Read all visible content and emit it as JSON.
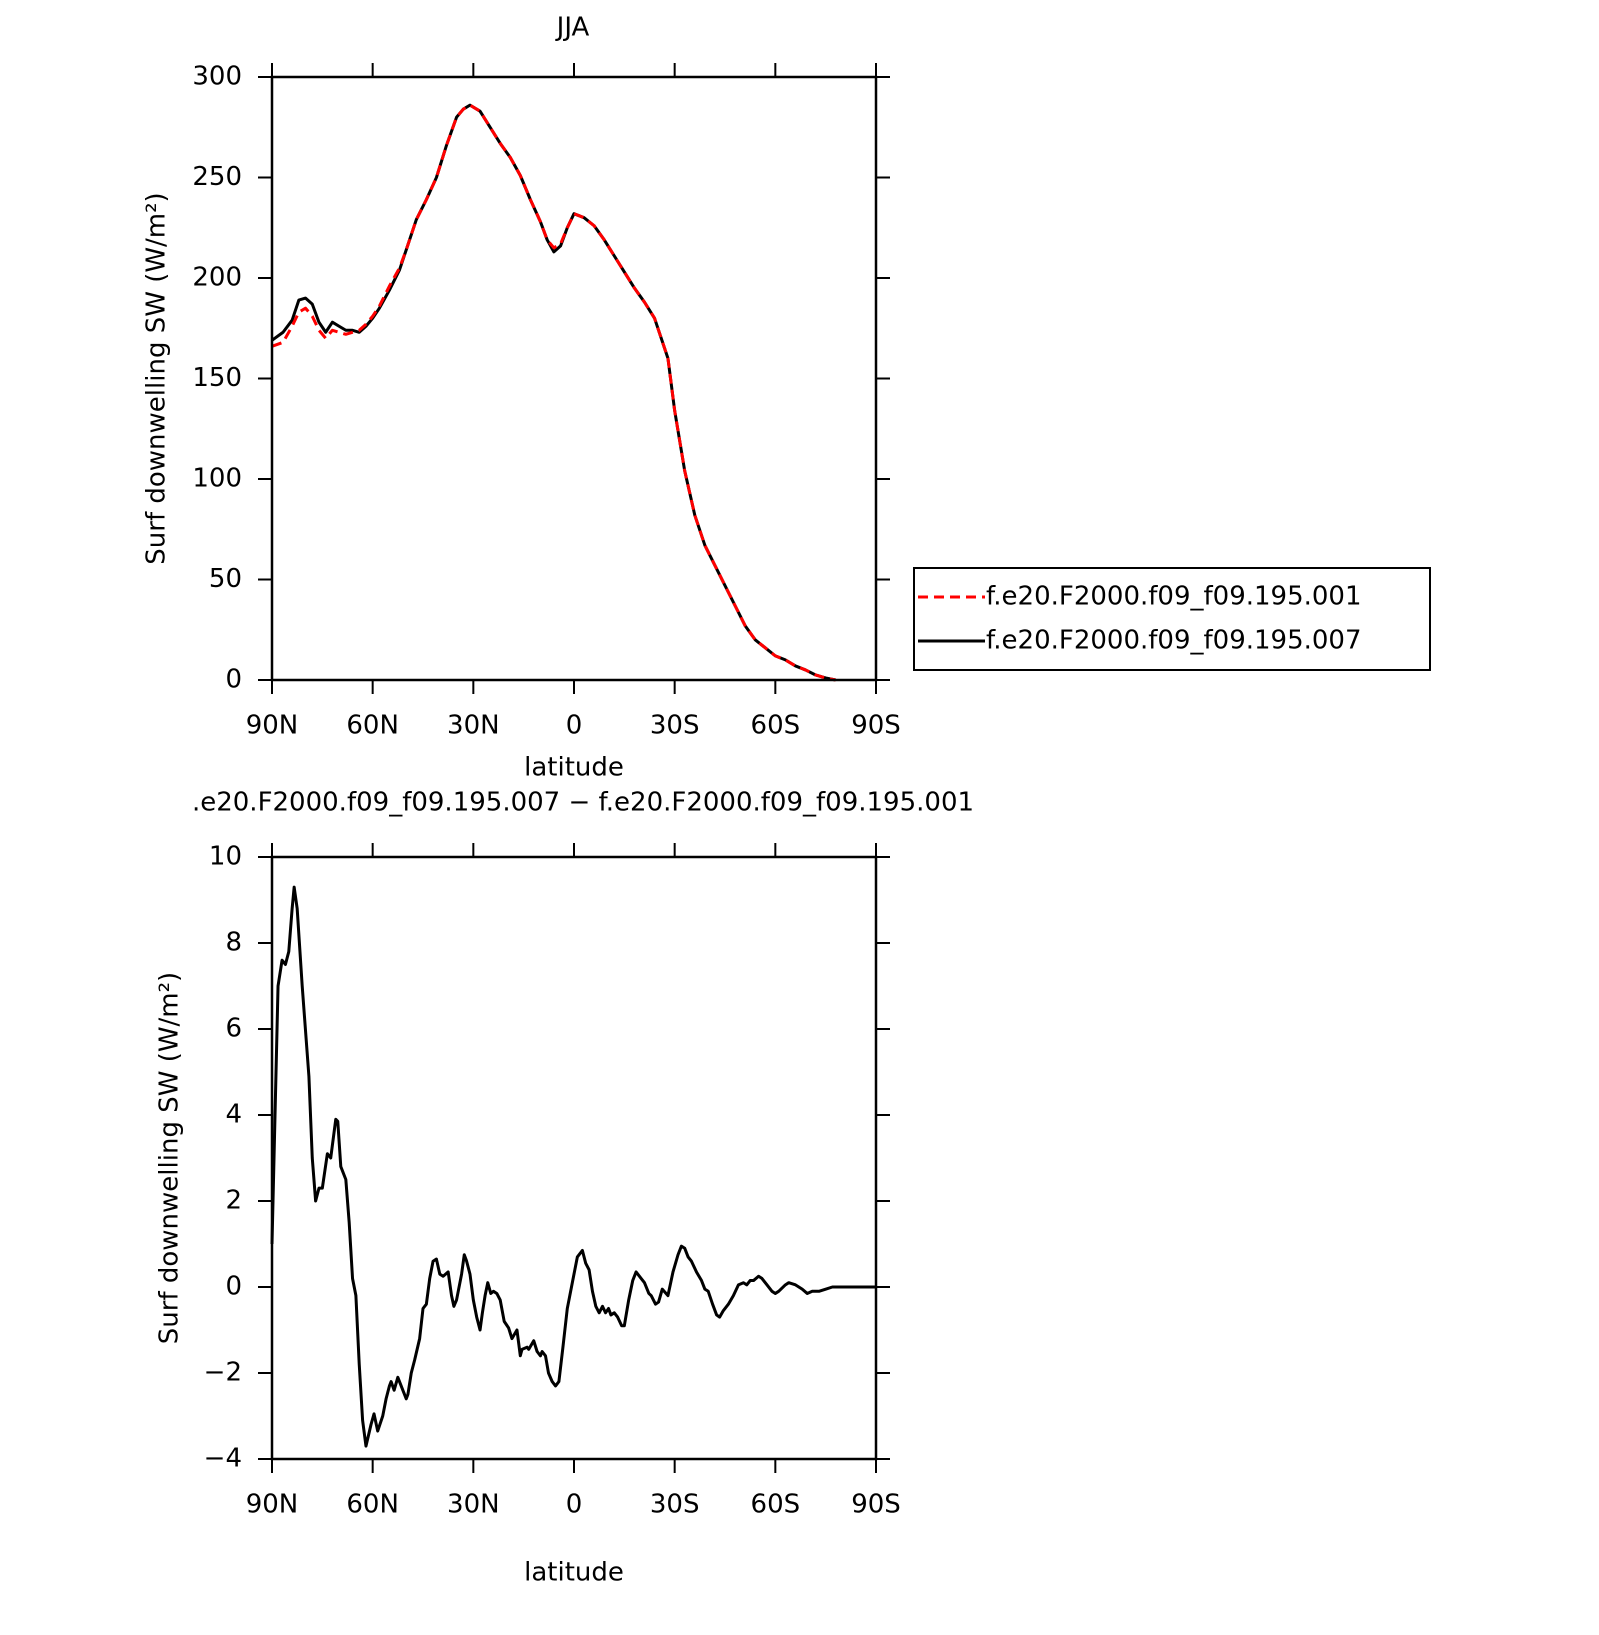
{
  "chart_data": [
    {
      "type": "line",
      "title": "JJA",
      "xlabel": "latitude",
      "ylabel": "Surf downwelling SW (W/m²)",
      "x": [
        90,
        86.7,
        84,
        82,
        80,
        78,
        76,
        74,
        72,
        70,
        68,
        66,
        64,
        62,
        60,
        58,
        55,
        52,
        50,
        47,
        44,
        41,
        38,
        35,
        33,
        31,
        28,
        25,
        22,
        19,
        16,
        13,
        10,
        8,
        6,
        4,
        2,
        0,
        -3,
        -6,
        -9,
        -12,
        -15,
        -18,
        -21,
        -24,
        -28,
        -30,
        -33,
        -36,
        -39,
        -42,
        -45,
        -48,
        -51,
        -54,
        -57,
        -60,
        -63,
        -66,
        -69,
        -72,
        -75,
        -78
      ],
      "series": [
        {
          "name": "f.e20.F2000.f09_f09.195.001",
          "color": "#ff0000",
          "linestyle": "dashed",
          "values": [
            166,
            168,
            176,
            183,
            185,
            181,
            174,
            170,
            174,
            173,
            172,
            173,
            174,
            177,
            181,
            186,
            196,
            205,
            214,
            229,
            239,
            250,
            266,
            280,
            284,
            286,
            283,
            275,
            267,
            260,
            251,
            239,
            228,
            219,
            215,
            217,
            225,
            232,
            230,
            226,
            219,
            211,
            203,
            195,
            188,
            180,
            160,
            134,
            104,
            82,
            67,
            57,
            47,
            37,
            27,
            20,
            16,
            12,
            10,
            7,
            5,
            2.5,
            1,
            0
          ]
        },
        {
          "name": "f.e20.F2000.f09_f09.195.007",
          "color": "#000000",
          "linestyle": "solid",
          "values": [
            169,
            173,
            179,
            189,
            190,
            187,
            178,
            173,
            178,
            176,
            174,
            174,
            173,
            176,
            180,
            185,
            194,
            204,
            214,
            229,
            239,
            250,
            266,
            280,
            284,
            286,
            283,
            275,
            267,
            260,
            251,
            239,
            228,
            219,
            213,
            216,
            225,
            232,
            230,
            226,
            219,
            211,
            203,
            195,
            188,
            180,
            160,
            134,
            104,
            82,
            67,
            57,
            47,
            37,
            27,
            20,
            16,
            12,
            10,
            7,
            5,
            2.5,
            1,
            0
          ]
        }
      ],
      "xlim": [
        90,
        -90
      ],
      "ylim": [
        0,
        300
      ],
      "xticks": [
        {
          "value": 90,
          "label": "90N"
        },
        {
          "value": 60,
          "label": "60N"
        },
        {
          "value": 30,
          "label": "30N"
        },
        0,
        {
          "value": -30,
          "label": "30S"
        },
        {
          "value": -60,
          "label": "60S"
        },
        {
          "value": -90,
          "label": "90S"
        }
      ],
      "yticks": [
        0,
        50,
        100,
        150,
        200,
        250,
        300
      ],
      "legend": "right"
    },
    {
      "type": "line",
      "title": ".e20.F2000.f09_f09.195.007 − f.e20.F2000.f09_f09.195.001",
      "xlabel": "latitude",
      "ylabel": "Surf downwelling SW (W/m²)",
      "x": [
        90,
        88.2,
        87,
        86,
        85,
        84,
        83.4,
        82.5,
        81,
        79,
        78,
        77,
        76,
        75,
        73.5,
        72.5,
        71,
        70.4,
        69.5,
        68,
        67,
        66,
        65,
        64,
        63,
        62,
        60.5,
        59.6,
        58.5,
        57,
        56,
        55,
        54.5,
        53.6,
        52.5,
        51.5,
        50,
        49.5,
        48.5,
        47.5,
        46,
        45,
        44,
        43,
        42,
        41,
        40,
        39,
        37.5,
        36.5,
        35.8,
        35,
        33.5,
        32.7,
        32,
        31,
        30,
        29,
        28,
        27.3,
        26.5,
        25.7,
        24.8,
        24,
        23,
        22,
        20.8,
        19.5,
        18.5,
        17,
        16,
        15.5,
        14,
        13.5,
        12,
        11,
        10,
        9.5,
        8.5,
        7.6,
        6.5,
        5.5,
        4.5,
        3.3,
        2,
        0.5,
        -1,
        -2.5,
        -3.5,
        -4.5,
        -5.5,
        -6.5,
        -7.5,
        -8.5,
        -9.4,
        -10.3,
        -11,
        -12,
        -13,
        -14.2,
        -15,
        -16.3,
        -17.5,
        -18.5,
        -20,
        -21,
        -22.3,
        -23,
        -24.3,
        -25.2,
        -26.3,
        -28,
        -29.5,
        -31,
        -32,
        -33,
        -34,
        -35,
        -36.5,
        -38,
        -39,
        -40,
        -41.3,
        -42.5,
        -43.4,
        -44.5,
        -46,
        -47.5,
        -49,
        -50.5,
        -51.5,
        -52.5,
        -53.5,
        -55,
        -56,
        -57.5,
        -59,
        -60,
        -61,
        -63,
        -64,
        -66,
        -68,
        -69.5,
        -71,
        -73,
        -75,
        -77,
        -80,
        -85,
        -90
      ],
      "series": [
        {
          "name": "difference",
          "color": "#000000",
          "values": [
            1.0,
            7.0,
            7.6,
            7.5,
            7.8,
            8.8,
            9.3,
            8.8,
            7.0,
            4.9,
            3.0,
            2.0,
            2.3,
            2.3,
            3.1,
            3.0,
            3.9,
            3.85,
            2.8,
            2.5,
            1.5,
            0.2,
            -0.2,
            -1.8,
            -3.1,
            -3.7,
            -3.2,
            -2.95,
            -3.35,
            -3.0,
            -2.6,
            -2.3,
            -2.2,
            -2.4,
            -2.1,
            -2.3,
            -2.6,
            -2.5,
            -2.0,
            -1.7,
            -1.2,
            -0.5,
            -0.4,
            0.2,
            0.6,
            0.65,
            0.3,
            0.25,
            0.35,
            -0.2,
            -0.45,
            -0.3,
            0.3,
            0.75,
            0.6,
            0.3,
            -0.3,
            -0.7,
            -1.0,
            -0.6,
            -0.2,
            0.1,
            -0.15,
            -0.1,
            -0.15,
            -0.3,
            -0.8,
            -0.95,
            -1.2,
            -1.0,
            -1.6,
            -1.45,
            -1.4,
            -1.45,
            -1.25,
            -1.5,
            -1.6,
            -1.5,
            -1.6,
            -2.0,
            -2.2,
            -2.3,
            -2.2,
            -1.4,
            -0.5,
            0.1,
            0.7,
            0.85,
            0.55,
            0.4,
            -0.1,
            -0.45,
            -0.6,
            -0.45,
            -0.6,
            -0.5,
            -0.65,
            -0.6,
            -0.7,
            -0.9,
            -0.9,
            -0.3,
            0.15,
            0.35,
            0.2,
            0.1,
            -0.15,
            -0.2,
            -0.4,
            -0.35,
            -0.05,
            -0.2,
            0.35,
            0.75,
            0.95,
            0.9,
            0.7,
            0.6,
            0.35,
            0.15,
            -0.05,
            -0.1,
            -0.4,
            -0.65,
            -0.7,
            -0.55,
            -0.4,
            -0.2,
            0.05,
            0.1,
            0.05,
            0.15,
            0.15,
            0.25,
            0.2,
            0.05,
            -0.1,
            -0.15,
            -0.1,
            0.05,
            0.1,
            0.05,
            -0.05,
            -0.15,
            -0.1,
            -0.1,
            -0.05,
            0,
            0,
            0,
            0
          ]
        }
      ],
      "xlim": [
        90,
        -90
      ],
      "ylim": [
        -4,
        10
      ],
      "xticks": [
        {
          "value": 90,
          "label": "90N"
        },
        {
          "value": 60,
          "label": "60N"
        },
        {
          "value": 30,
          "label": "30N"
        },
        0,
        {
          "value": -30,
          "label": "30S"
        },
        {
          "value": -60,
          "label": "60S"
        },
        {
          "value": -90,
          "label": "90S"
        }
      ],
      "yticks": [
        {
          "value": -4,
          "label": "−4"
        },
        {
          "value": -2,
          "label": "−2"
        },
        0,
        2,
        4,
        6,
        8,
        10
      ]
    }
  ]
}
